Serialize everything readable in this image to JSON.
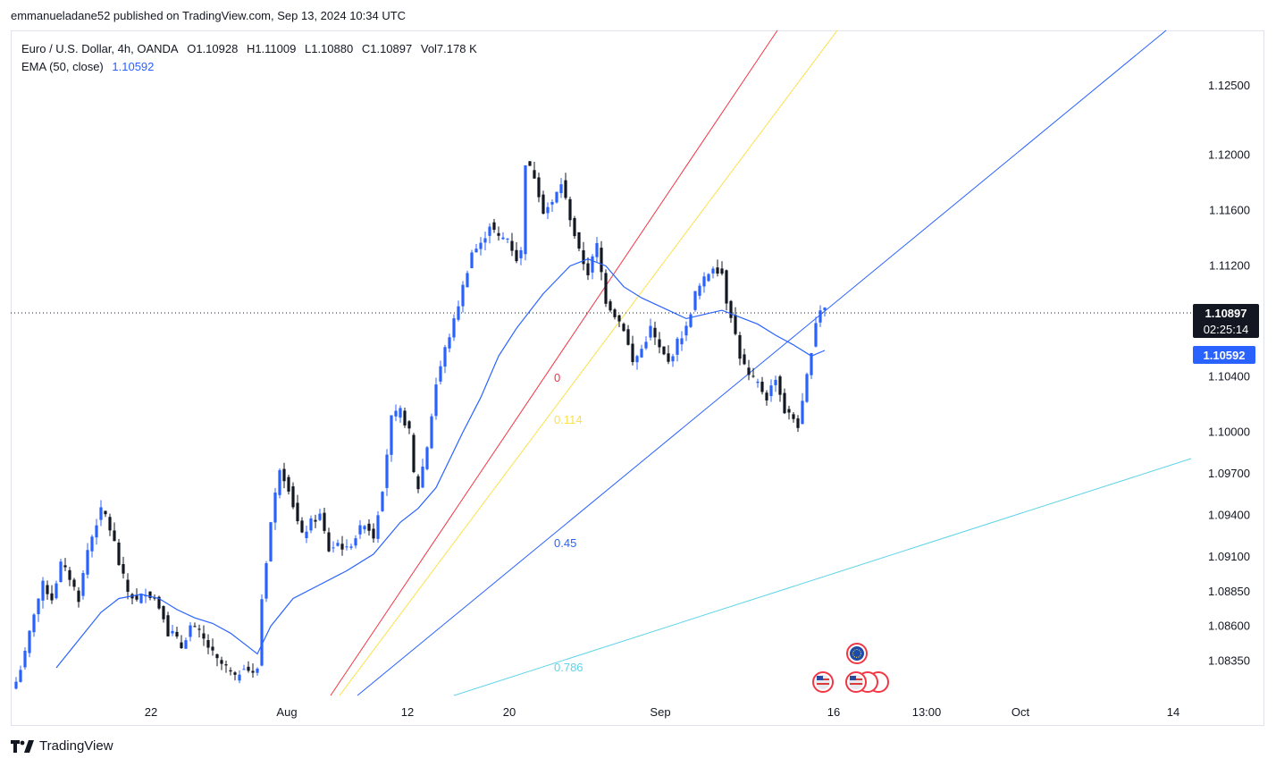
{
  "publisher": "emmanueladane52 published on TradingView.com, Sep 13, 2024 10:34 UTC",
  "legend": {
    "symbol": "Euro / U.S. Dollar, 4h, OANDA",
    "open": "O1.10928",
    "high": "H1.11009",
    "low": "L1.10880",
    "close": "C1.10897",
    "volume": "Vol7.178 K",
    "ema_label": "EMA (50, close)",
    "ema_value": "1.10592"
  },
  "footer": {
    "brand": "TradingView"
  },
  "colors": {
    "bull": "#2962ff",
    "bear": "#131722",
    "ema": "#2962ff",
    "fib0": "#f23645",
    "fib114": "#fbe14b",
    "fib45": "#2962ff",
    "fib786": "#5fd3e8",
    "price_tag": "#131722",
    "ema_tag": "#2962ff"
  },
  "chart_data": {
    "type": "candlestick",
    "symbol": "EURUSD",
    "timeframe": "4h",
    "y_ticks": [
      "1.12500",
      "1.12000",
      "1.11600",
      "1.11200",
      "1.10400",
      "1.10000",
      "1.09700",
      "1.09400",
      "1.09100",
      "1.08850",
      "1.08600",
      "1.08350"
    ],
    "x_ticks": [
      "22",
      "Aug",
      "12",
      "20",
      "Sep",
      "16",
      "13:00",
      "Oct",
      "14"
    ],
    "ylim": [
      1.081,
      1.129
    ],
    "current_price": {
      "label": "1.10897",
      "countdown": "02:25:14",
      "value": 1.10897
    },
    "ema_tag": {
      "label": "1.10592",
      "value": 1.10592
    },
    "fib_labels": [
      {
        "label": "0",
        "color": "#f23645"
      },
      {
        "label": "0.114",
        "color": "#fbe14b"
      },
      {
        "label": "0.45",
        "color": "#2962ff"
      },
      {
        "label": "0.786",
        "color": "#5fd3e8"
      }
    ],
    "close_path": [
      [
        0,
        1.082
      ],
      [
        2,
        1.084
      ],
      [
        4,
        1.087
      ],
      [
        6,
        1.089
      ],
      [
        8,
        1.088
      ],
      [
        10,
        1.0905
      ],
      [
        12,
        1.0895
      ],
      [
        14,
        1.088
      ],
      [
        16,
        1.0915
      ],
      [
        18,
        1.0935
      ],
      [
        19,
        1.0943
      ],
      [
        20,
        1.094
      ],
      [
        21,
        1.093
      ],
      [
        22,
        1.092
      ],
      [
        23,
        1.0905
      ],
      [
        25,
        1.0885
      ],
      [
        27,
        1.0878
      ],
      [
        29,
        1.0885
      ],
      [
        31,
        1.088
      ],
      [
        33,
        1.0868
      ],
      [
        34,
        1.0855
      ],
      [
        35,
        1.0855
      ],
      [
        37,
        1.0845
      ],
      [
        39,
        1.086
      ],
      [
        41,
        1.0855
      ],
      [
        43,
        1.0845
      ],
      [
        45,
        1.0835
      ],
      [
        47,
        1.083
      ],
      [
        49,
        1.0822
      ],
      [
        51,
        1.0832
      ],
      [
        53,
        1.0825
      ],
      [
        54,
        1.083
      ],
      [
        55,
        1.088
      ],
      [
        57,
        1.0935
      ],
      [
        59,
        1.0975
      ],
      [
        61,
        1.096
      ],
      [
        63,
        1.0935
      ],
      [
        64,
        1.0925
      ],
      [
        66,
        1.0935
      ],
      [
        68,
        1.094
      ],
      [
        70,
        1.0915
      ],
      [
        72,
        1.092
      ],
      [
        74,
        1.0915
      ],
      [
        76,
        1.0925
      ],
      [
        78,
        1.0935
      ],
      [
        80,
        1.0925
      ],
      [
        82,
        1.096
      ],
      [
        84,
        1.101
      ],
      [
        86,
        1.1015
      ],
      [
        88,
        1.1
      ],
      [
        89,
        1.097
      ],
      [
        90,
        1.096
      ],
      [
        92,
        1.099
      ],
      [
        94,
        1.1035
      ],
      [
        96,
        1.106
      ],
      [
        98,
        1.108
      ],
      [
        100,
        1.1105
      ],
      [
        102,
        1.113
      ],
      [
        104,
        1.1135
      ],
      [
        106,
        1.115
      ],
      [
        108,
        1.114
      ],
      [
        110,
        1.114
      ],
      [
        112,
        1.1125
      ],
      [
        113,
        1.113
      ],
      [
        114,
        1.1195
      ],
      [
        116,
        1.1185
      ],
      [
        118,
        1.116
      ],
      [
        120,
        1.1165
      ],
      [
        122,
        1.118
      ],
      [
        124,
        1.1155
      ],
      [
        126,
        1.113
      ],
      [
        128,
        1.1115
      ],
      [
        130,
        1.1135
      ],
      [
        132,
        1.1095
      ],
      [
        134,
        1.1085
      ],
      [
        136,
        1.1075
      ],
      [
        138,
        1.105
      ],
      [
        140,
        1.106
      ],
      [
        142,
        1.1075
      ],
      [
        144,
        1.106
      ],
      [
        146,
        1.105
      ],
      [
        148,
        1.1065
      ],
      [
        150,
        1.1075
      ],
      [
        152,
        1.11
      ],
      [
        154,
        1.111
      ],
      [
        156,
        1.112
      ],
      [
        158,
        1.1115
      ],
      [
        159,
        1.1095
      ],
      [
        160,
        1.1085
      ],
      [
        162,
        1.1055
      ],
      [
        164,
        1.104
      ],
      [
        166,
        1.1035
      ],
      [
        168,
        1.1025
      ],
      [
        170,
        1.104
      ],
      [
        172,
        1.1015
      ],
      [
        174,
        1.101
      ],
      [
        175,
        1.1005
      ],
      [
        176,
        1.102
      ],
      [
        178,
        1.106
      ],
      [
        179,
        1.108
      ],
      [
        180,
        1.1089
      ],
      [
        181,
        1.109
      ]
    ],
    "ema_path": [
      [
        9,
        1.083
      ],
      [
        14,
        1.085
      ],
      [
        19,
        1.087
      ],
      [
        23,
        1.088
      ],
      [
        28,
        1.0883
      ],
      [
        32,
        1.088
      ],
      [
        36,
        1.0872
      ],
      [
        40,
        1.0866
      ],
      [
        44,
        1.0862
      ],
      [
        48,
        1.0855
      ],
      [
        52,
        1.0845
      ],
      [
        54,
        1.084
      ],
      [
        57,
        1.086
      ],
      [
        62,
        1.088
      ],
      [
        68,
        1.089
      ],
      [
        74,
        1.09
      ],
      [
        80,
        1.0912
      ],
      [
        86,
        1.0935
      ],
      [
        90,
        1.0945
      ],
      [
        94,
        1.096
      ],
      [
        100,
        1.1
      ],
      [
        104,
        1.1025
      ],
      [
        108,
        1.1055
      ],
      [
        112,
        1.1075
      ],
      [
        118,
        1.11
      ],
      [
        124,
        1.112
      ],
      [
        128,
        1.1125
      ],
      [
        132,
        1.112
      ],
      [
        136,
        1.1105
      ],
      [
        140,
        1.1097
      ],
      [
        146,
        1.1088
      ],
      [
        150,
        1.1082
      ],
      [
        154,
        1.1085
      ],
      [
        158,
        1.1088
      ],
      [
        162,
        1.1083
      ],
      [
        166,
        1.1078
      ],
      [
        170,
        1.107
      ],
      [
        174,
        1.1063
      ],
      [
        178,
        1.1055
      ],
      [
        181,
        1.1059
      ]
    ]
  }
}
